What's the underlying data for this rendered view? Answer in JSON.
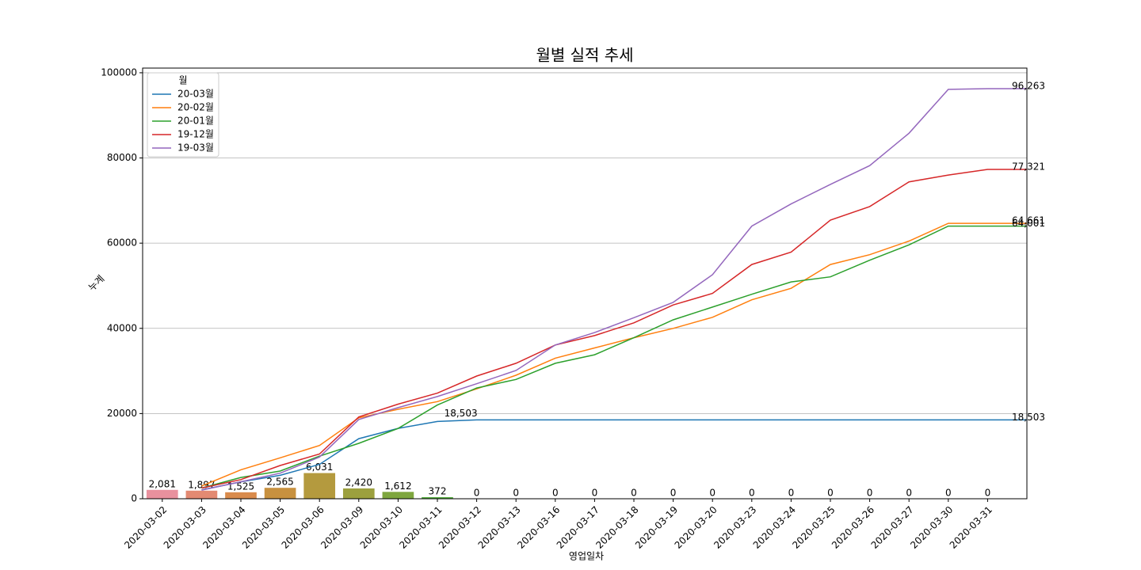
{
  "chart_data": {
    "type": "bar_line",
    "title": "월별 실적 추세",
    "x_label": "영업일차",
    "y_label": "누계",
    "categories": [
      "2020-03-02",
      "2020-03-03",
      "2020-03-04",
      "2020-03-05",
      "2020-03-06",
      "2020-03-09",
      "2020-03-10",
      "2020-03-11",
      "2020-03-12",
      "2020-03-13",
      "2020-03-16",
      "2020-03-17",
      "2020-03-18",
      "2020-03-19",
      "2020-03-20",
      "2020-03-23",
      "2020-03-24",
      "2020-03-25",
      "2020-03-26",
      "2020-03-27",
      "2020-03-30",
      "2020-03-31"
    ],
    "values": [
      2081,
      1897,
      1525,
      2565,
      6031,
      2420,
      1612,
      372,
      0,
      0,
      0,
      0,
      0,
      0,
      0,
      0,
      0,
      0,
      0,
      0,
      0,
      0
    ],
    "value_labels": [
      "2,081",
      "1,897",
      "1,525",
      "2,565",
      "6,031",
      "2,420",
      "1,612",
      "372",
      "0",
      "0",
      "0",
      "0",
      "0",
      "0",
      "0",
      "0",
      "0",
      "0",
      "0",
      "0",
      "0",
      "0"
    ],
    "bar_colors": [
      "#e8919e",
      "#e38a72",
      "#d98b4c",
      "#c8913f",
      "#b49a3e",
      "#9ca03e",
      "#7ea63e",
      "#55ab3e",
      "#3eae6e",
      "#3eab8e",
      "#3fa8a0",
      "#40a5af",
      "#42a2bd",
      "#489ccf",
      "#6a94dc",
      "#8b8be0",
      "#a884de",
      "#c07ad8",
      "#d373cc",
      "#df72b8",
      "#e577a6",
      "#e88497"
    ],
    "series": [
      {
        "name": "20-03월",
        "color": "#1f77b4",
        "values": [
          2081,
          3978,
          5503,
          8068,
          14099,
          16519,
          18131,
          18503,
          18503,
          18503,
          18503,
          18503,
          18503,
          18503,
          18503,
          18503,
          18503,
          18503,
          18503,
          18503,
          18503,
          18503
        ],
        "end_label": "18,503"
      },
      {
        "name": "20-02월",
        "color": "#ff7f0e",
        "values": [
          3000,
          6800,
          9600,
          12500,
          19000,
          21000,
          22800,
          25800,
          29000,
          33000,
          35400,
          37800,
          40000,
          42600,
          46700,
          49400,
          55000,
          57300,
          60500,
          64661,
          64661,
          64661
        ],
        "end_label": "64,661"
      },
      {
        "name": "20-01월",
        "color": "#2ca02c",
        "values": [
          2500,
          5000,
          6500,
          10000,
          13000,
          16500,
          22000,
          26000,
          28000,
          31800,
          33800,
          37800,
          42000,
          45000,
          48000,
          50900,
          52100,
          56000,
          59600,
          64001,
          64001,
          64001
        ],
        "end_label": "64,001"
      },
      {
        "name": "19-12월",
        "color": "#d62728",
        "values": [
          2500,
          4500,
          7800,
          10500,
          19200,
          22200,
          24800,
          28800,
          31800,
          36100,
          38300,
          41300,
          45500,
          48200,
          55000,
          57900,
          65400,
          68600,
          74400,
          76000,
          77321,
          77321
        ],
        "end_label": "77,321"
      },
      {
        "name": "19-03월",
        "color": "#9467bd",
        "values": [
          2000,
          4000,
          6000,
          9800,
          18600,
          21400,
          24000,
          27000,
          30100,
          36100,
          39000,
          42500,
          46100,
          52600,
          64000,
          69200,
          73800,
          78200,
          85800,
          96100,
          96263,
          96263
        ],
        "end_label": "96,263"
      }
    ],
    "annotations": [
      {
        "text": "18,503",
        "series": 0,
        "index": 7
      }
    ],
    "legend_title": "월",
    "legend": "upper left",
    "ylim": [
      0,
      101100
    ],
    "yticks": [
      0,
      20000,
      40000,
      60000,
      80000,
      100000
    ],
    "grid": true
  }
}
